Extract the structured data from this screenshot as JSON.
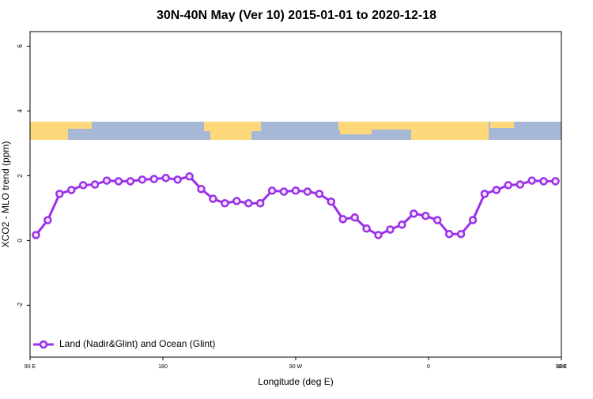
{
  "chart_data": {
    "type": "line",
    "title": "30N-40N May (Ver 10)   2015-01-01 to 2020-12-18",
    "x_label": "Longitude (deg E)",
    "y_label": "XCO2 - MLO trend (ppm)",
    "xlim": [
      90,
      450
    ],
    "xticks": [
      {
        "value": 90,
        "label": "90 E"
      },
      {
        "value": 180,
        "label": "180"
      },
      {
        "value": 270,
        "label": "90 W"
      },
      {
        "value": 360,
        "label": "0"
      },
      {
        "value": 450,
        "label": "90 E"
      },
      {
        "value": 540,
        "label": "180"
      }
    ],
    "ylim": [
      -3.6,
      6.45
    ],
    "yticks": [
      -2,
      0,
      2,
      4,
      6
    ],
    "legend": "bottom-left",
    "x": [
      94,
      102,
      110,
      118,
      126,
      134,
      142,
      150,
      158,
      166,
      174,
      182,
      190,
      198,
      206,
      214,
      222,
      230,
      238,
      246,
      254,
      262,
      270,
      278,
      286,
      294,
      302,
      310,
      318,
      326,
      334,
      342,
      350,
      358,
      366,
      374,
      382,
      390,
      398,
      406,
      414,
      422,
      430,
      438,
      446
    ],
    "series": [
      {
        "name": "Land (Nadir&Glint) and Ocean (Glint)",
        "color": "#9b30e8",
        "values": [
          0.17,
          0.63,
          1.44,
          1.56,
          1.71,
          1.73,
          1.85,
          1.83,
          1.83,
          1.88,
          1.9,
          1.93,
          1.88,
          1.98,
          1.59,
          1.29,
          1.15,
          1.22,
          1.15,
          1.15,
          1.54,
          1.51,
          1.54,
          1.51,
          1.44,
          1.2,
          0.66,
          0.71,
          0.37,
          0.17,
          0.34,
          0.49,
          0.83,
          0.76,
          0.63,
          0.2,
          0.2,
          0.63,
          1.44,
          1.56,
          1.71,
          1.73,
          1.85,
          1.83,
          1.83
        ]
      }
    ]
  }
}
